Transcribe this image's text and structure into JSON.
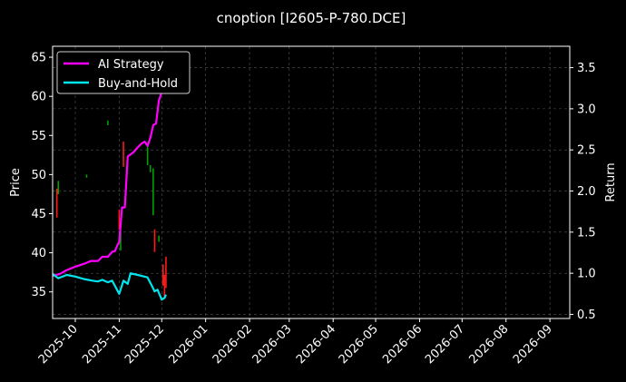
{
  "chart_data": {
    "type": "line",
    "title": "cnoption [I2605-P-780.DCE]",
    "ylabel": "Price",
    "y2label": "Return",
    "ylim": [
      31.6,
      66.4
    ],
    "y2lim": [
      0.45,
      3.76
    ],
    "xlim": [
      "2025-09-15",
      "2026-09-15"
    ],
    "yticks": [
      35,
      40,
      45,
      50,
      55,
      60,
      65
    ],
    "y2ticks": [
      0.5,
      1.0,
      1.5,
      2.0,
      2.5,
      3.0,
      3.5
    ],
    "xticks": [
      {
        "date": "2025-10-01",
        "label": "2025-10"
      },
      {
        "date": "2025-11-01",
        "label": "2025-11"
      },
      {
        "date": "2025-12-01",
        "label": "2025-12"
      },
      {
        "date": "2026-01-01",
        "label": "2026-01"
      },
      {
        "date": "2026-02-01",
        "label": "2026-02"
      },
      {
        "date": "2026-03-01",
        "label": "2026-03"
      },
      {
        "date": "2026-04-01",
        "label": "2026-04"
      },
      {
        "date": "2026-05-01",
        "label": "2026-05"
      },
      {
        "date": "2026-06-01",
        "label": "2026-06"
      },
      {
        "date": "2026-07-01",
        "label": "2026-07"
      },
      {
        "date": "2026-08-01",
        "label": "2026-08"
      },
      {
        "date": "2026-09-01",
        "label": "2026-09"
      }
    ],
    "grid": true,
    "legend_position": "top-left",
    "colors": {
      "background": "#000000",
      "ai": "#ff00ff",
      "bh": "#00e5ee",
      "up": "#00a000",
      "down": "#ff1a1a",
      "grid": "#555555"
    },
    "series": [
      {
        "name": "AI Strategy",
        "axis": "right",
        "points": [
          [
            "2025-09-15",
            0.97
          ],
          [
            "2025-09-20",
            0.99
          ],
          [
            "2025-09-24",
            1.03
          ],
          [
            "2025-10-01",
            1.08
          ],
          [
            "2025-10-08",
            1.12
          ],
          [
            "2025-10-12",
            1.15
          ],
          [
            "2025-10-17",
            1.15
          ],
          [
            "2025-10-20",
            1.2
          ],
          [
            "2025-10-24",
            1.2
          ],
          [
            "2025-10-27",
            1.26
          ],
          [
            "2025-10-29",
            1.27
          ],
          [
            "2025-10-31",
            1.35
          ],
          [
            "2025-11-01",
            1.38
          ],
          [
            "2025-11-03",
            1.8
          ],
          [
            "2025-11-05",
            1.8
          ],
          [
            "2025-11-07",
            2.42
          ],
          [
            "2025-11-11",
            2.47
          ],
          [
            "2025-11-14",
            2.53
          ],
          [
            "2025-11-17",
            2.58
          ],
          [
            "2025-11-19",
            2.6
          ],
          [
            "2025-11-21",
            2.55
          ],
          [
            "2025-11-23",
            2.65
          ],
          [
            "2025-11-25",
            2.8
          ],
          [
            "2025-11-27",
            2.82
          ],
          [
            "2025-11-29",
            3.1
          ],
          [
            "2025-12-01",
            3.2
          ],
          [
            "2025-12-03",
            3.5
          ],
          [
            "2025-12-04",
            3.7
          ]
        ]
      },
      {
        "name": "Buy-and-Hold",
        "axis": "right",
        "points": [
          [
            "2025-09-15",
            0.99
          ],
          [
            "2025-09-19",
            0.94
          ],
          [
            "2025-09-25",
            0.98
          ],
          [
            "2025-10-01",
            0.96
          ],
          [
            "2025-10-07",
            0.93
          ],
          [
            "2025-10-13",
            0.91
          ],
          [
            "2025-10-17",
            0.9
          ],
          [
            "2025-10-20",
            0.92
          ],
          [
            "2025-10-24",
            0.89
          ],
          [
            "2025-10-27",
            0.91
          ],
          [
            "2025-11-01",
            0.75
          ],
          [
            "2025-11-04",
            0.91
          ],
          [
            "2025-11-07",
            0.87
          ],
          [
            "2025-11-09",
            1.0
          ],
          [
            "2025-11-14",
            0.98
          ],
          [
            "2025-11-21",
            0.95
          ],
          [
            "2025-11-24",
            0.85
          ],
          [
            "2025-11-26",
            0.78
          ],
          [
            "2025-11-28",
            0.8
          ],
          [
            "2025-11-30",
            0.72
          ],
          [
            "2025-12-01",
            0.68
          ],
          [
            "2025-12-03",
            0.7
          ],
          [
            "2025-12-04",
            0.74
          ]
        ]
      }
    ],
    "candles": [
      {
        "date": "2025-09-18",
        "low": 44.5,
        "high": 48.2,
        "dir": "down"
      },
      {
        "date": "2025-09-19",
        "low": 47.5,
        "high": 49.2,
        "dir": "up"
      },
      {
        "date": "2025-10-09",
        "low": 49.6,
        "high": 50.0,
        "dir": "up"
      },
      {
        "date": "2025-10-24",
        "low": 56.3,
        "high": 56.9,
        "dir": "up"
      },
      {
        "date": "2025-11-01",
        "low": 43.0,
        "high": 45.5,
        "dir": "down"
      },
      {
        "date": "2025-11-02",
        "low": 40.3,
        "high": 42.8,
        "dir": "up"
      },
      {
        "date": "2025-11-04",
        "low": 51.0,
        "high": 54.2,
        "dir": "down"
      },
      {
        "date": "2025-11-21",
        "low": 51.2,
        "high": 53.8,
        "dir": "up"
      },
      {
        "date": "2025-11-23",
        "low": 50.3,
        "high": 51.2,
        "dir": "up"
      },
      {
        "date": "2025-11-25",
        "low": 44.8,
        "high": 50.8,
        "dir": "up"
      },
      {
        "date": "2025-11-26",
        "low": 40.1,
        "high": 43.0,
        "dir": "down"
      },
      {
        "date": "2025-11-29",
        "low": 41.4,
        "high": 42.2,
        "dir": "up"
      },
      {
        "date": "2025-12-02",
        "low": 35.8,
        "high": 38.5,
        "dir": "down"
      },
      {
        "date": "2025-12-03",
        "low": 34.2,
        "high": 37.2,
        "dir": "down"
      },
      {
        "date": "2025-12-04",
        "low": 35.5,
        "high": 39.5,
        "dir": "down"
      }
    ]
  }
}
